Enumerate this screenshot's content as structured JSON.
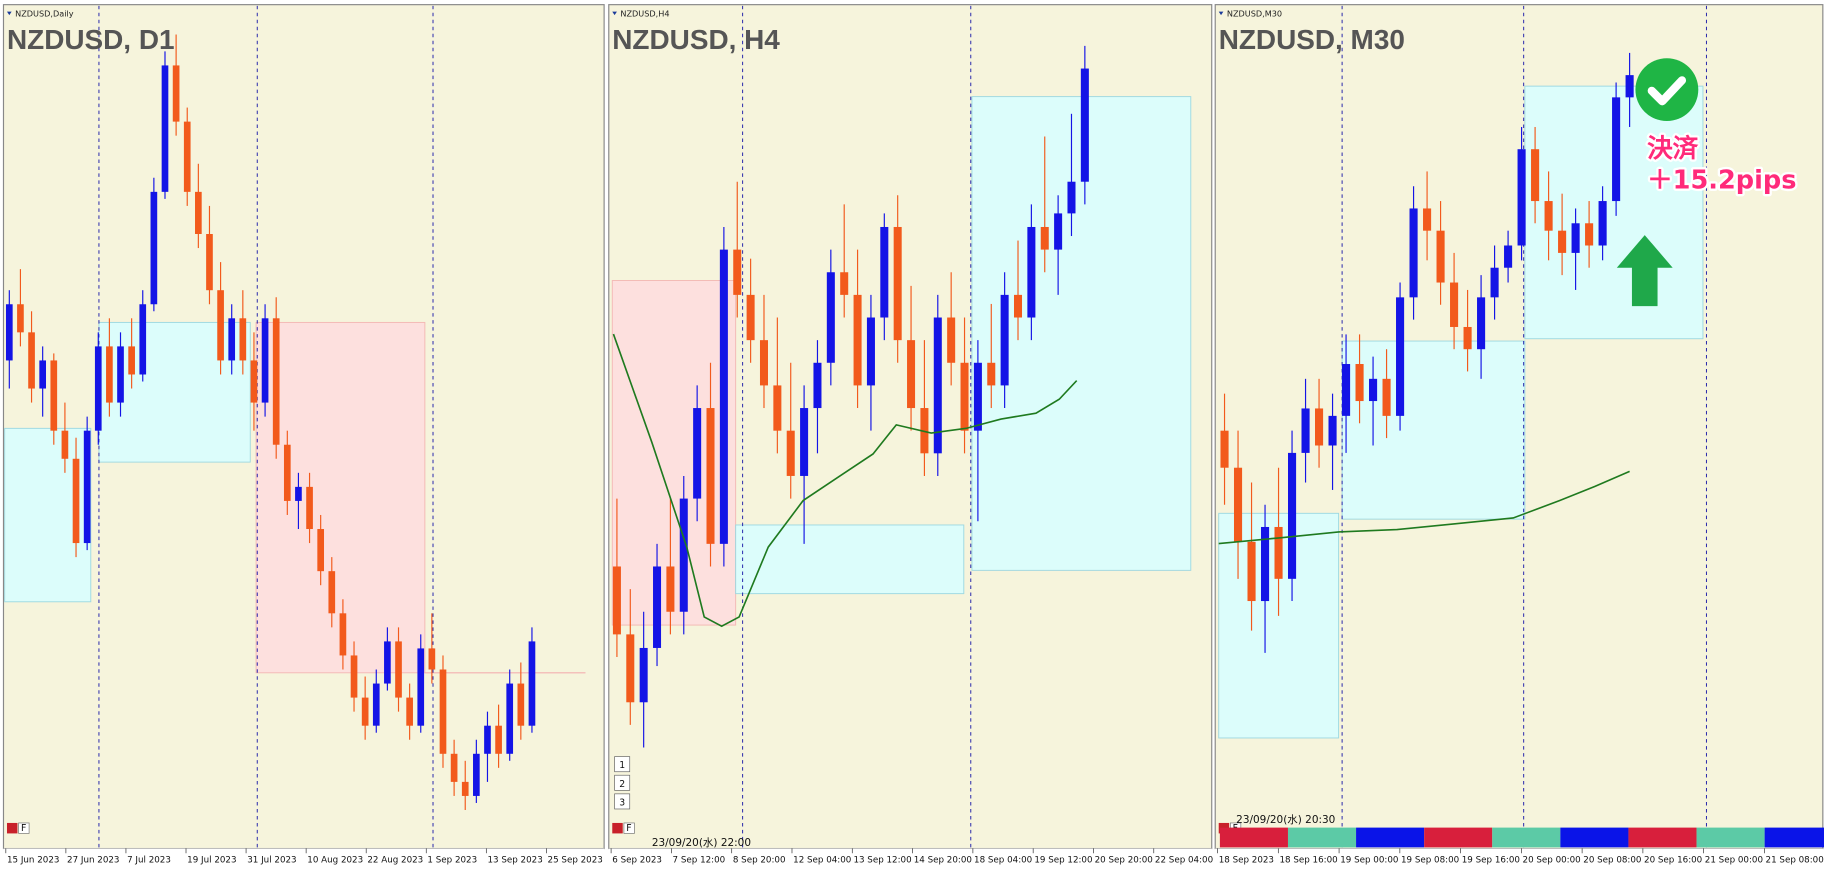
{
  "panels": [
    {
      "header": "NZDUSD,Daily",
      "title": "NZDUSD, D1",
      "ylim": [
        0.584,
        0.642
      ],
      "x_labels": [
        "15 Jun 2023",
        "27 Jun 2023",
        "7 Jul 2023",
        "19 Jul 2023",
        "31 Jul 2023",
        "10 Aug 2023",
        "22 Aug 2023",
        "1 Sep 2023",
        "13 Sep 2023",
        "25 Sep 2023"
      ],
      "candles": [
        [
          0.618,
          0.623,
          0.616,
          0.622
        ],
        [
          0.622,
          0.6245,
          0.619,
          0.62
        ],
        [
          0.62,
          0.6215,
          0.615,
          0.616
        ],
        [
          0.616,
          0.619,
          0.614,
          0.618
        ],
        [
          0.618,
          0.6185,
          0.612,
          0.613
        ],
        [
          0.613,
          0.615,
          0.61,
          0.611
        ],
        [
          0.611,
          0.6125,
          0.604,
          0.605
        ],
        [
          0.605,
          0.614,
          0.6045,
          0.613
        ],
        [
          0.613,
          0.62,
          0.612,
          0.619
        ],
        [
          0.619,
          0.621,
          0.614,
          0.615
        ],
        [
          0.615,
          0.62,
          0.614,
          0.619
        ],
        [
          0.619,
          0.621,
          0.616,
          0.617
        ],
        [
          0.617,
          0.623,
          0.6165,
          0.622
        ],
        [
          0.622,
          0.631,
          0.6215,
          0.63
        ],
        [
          0.63,
          0.64,
          0.6295,
          0.639
        ],
        [
          0.639,
          0.6412,
          0.634,
          0.635
        ],
        [
          0.635,
          0.636,
          0.629,
          0.63
        ],
        [
          0.63,
          0.632,
          0.626,
          0.627
        ],
        [
          0.627,
          0.629,
          0.622,
          0.623
        ],
        [
          0.623,
          0.625,
          0.617,
          0.618
        ],
        [
          0.618,
          0.622,
          0.617,
          0.621
        ],
        [
          0.621,
          0.623,
          0.617,
          0.618
        ],
        [
          0.618,
          0.62,
          0.613,
          0.615
        ],
        [
          0.615,
          0.622,
          0.614,
          0.621
        ],
        [
          0.621,
          0.6225,
          0.611,
          0.612
        ],
        [
          0.612,
          0.613,
          0.607,
          0.608
        ],
        [
          0.608,
          0.61,
          0.606,
          0.609
        ],
        [
          0.609,
          0.61,
          0.605,
          0.606
        ],
        [
          0.606,
          0.607,
          0.602,
          0.603
        ],
        [
          0.603,
          0.604,
          0.599,
          0.6
        ],
        [
          0.6,
          0.601,
          0.596,
          0.597
        ],
        [
          0.597,
          0.598,
          0.593,
          0.594
        ],
        [
          0.594,
          0.5955,
          0.591,
          0.592
        ],
        [
          0.592,
          0.596,
          0.5915,
          0.595
        ],
        [
          0.595,
          0.599,
          0.5945,
          0.598
        ],
        [
          0.598,
          0.599,
          0.593,
          0.594
        ],
        [
          0.594,
          0.595,
          0.591,
          0.592
        ],
        [
          0.592,
          0.5985,
          0.5915,
          0.5975
        ],
        [
          0.5975,
          0.6,
          0.595,
          0.596
        ],
        [
          0.596,
          0.597,
          0.589,
          0.59
        ],
        [
          0.59,
          0.591,
          0.587,
          0.588
        ],
        [
          0.588,
          0.5895,
          0.586,
          0.587
        ],
        [
          0.587,
          0.591,
          0.5865,
          0.59
        ],
        [
          0.59,
          0.593,
          0.588,
          0.592
        ],
        [
          0.592,
          0.5935,
          0.589,
          0.59
        ],
        [
          0.59,
          0.596,
          0.5895,
          0.595
        ],
        [
          0.595,
          0.5965,
          0.591,
          0.592
        ],
        [
          0.592,
          0.599,
          0.5915,
          0.598
        ]
      ]
    },
    {
      "header": "NZDUSD,H4",
      "title": "NZDUSD, H4",
      "ylim": [
        0.583,
        0.601
      ],
      "x_labels": [
        "6 Sep 2023",
        "7 Sep 12:00",
        "8 Sep 20:00",
        "12 Sep 04:00",
        "13 Sep 12:00",
        "14 Sep 20:00",
        "18 Sep 04:00",
        "19 Sep 12:00",
        "20 Sep 20:00",
        "22 Sep 04:00"
      ],
      "candles": [
        [
          0.589,
          0.5905,
          0.587,
          0.5875
        ],
        [
          0.5875,
          0.5885,
          0.5855,
          0.586
        ],
        [
          0.586,
          0.588,
          0.585,
          0.5872
        ],
        [
          0.5872,
          0.5895,
          0.5868,
          0.589
        ],
        [
          0.589,
          0.5905,
          0.5875,
          0.588
        ],
        [
          0.588,
          0.591,
          0.5875,
          0.5905
        ],
        [
          0.5905,
          0.593,
          0.59,
          0.5925
        ],
        [
          0.5925,
          0.5935,
          0.589,
          0.5895
        ],
        [
          0.5895,
          0.5965,
          0.589,
          0.596
        ],
        [
          0.596,
          0.5975,
          0.5945,
          0.595
        ],
        [
          0.595,
          0.5958,
          0.5935,
          0.594
        ],
        [
          0.594,
          0.595,
          0.5925,
          0.593
        ],
        [
          0.593,
          0.5945,
          0.5915,
          0.592
        ],
        [
          0.592,
          0.5935,
          0.5905,
          0.591
        ],
        [
          0.591,
          0.593,
          0.5895,
          0.5925
        ],
        [
          0.5925,
          0.594,
          0.5915,
          0.5935
        ],
        [
          0.5935,
          0.596,
          0.593,
          0.5955
        ],
        [
          0.5955,
          0.597,
          0.5945,
          0.595
        ],
        [
          0.595,
          0.596,
          0.5925,
          0.593
        ],
        [
          0.593,
          0.595,
          0.592,
          0.5945
        ],
        [
          0.5945,
          0.5968,
          0.594,
          0.5965
        ],
        [
          0.5965,
          0.5972,
          0.5935,
          0.594
        ],
        [
          0.594,
          0.5952,
          0.592,
          0.5925
        ],
        [
          0.5925,
          0.594,
          0.591,
          0.5915
        ],
        [
          0.5915,
          0.595,
          0.591,
          0.5945
        ],
        [
          0.5945,
          0.5955,
          0.593,
          0.5935
        ],
        [
          0.5935,
          0.5945,
          0.5915,
          0.592
        ],
        [
          0.592,
          0.594,
          0.59,
          0.5935
        ],
        [
          0.5935,
          0.5948,
          0.5925,
          0.593
        ],
        [
          0.593,
          0.5955,
          0.5925,
          0.595
        ],
        [
          0.595,
          0.5962,
          0.594,
          0.5945
        ],
        [
          0.5945,
          0.597,
          0.594,
          0.5965
        ],
        [
          0.5965,
          0.5985,
          0.5955,
          0.596
        ],
        [
          0.596,
          0.5972,
          0.595,
          0.5968
        ],
        [
          0.5968,
          0.599,
          0.5963,
          0.5975
        ],
        [
          0.5975,
          0.6005,
          0.597,
          0.6
        ]
      ]
    },
    {
      "header": "NZDUSD,M30",
      "title": "NZDUSD, M30",
      "ylim": [
        0.59,
        0.601
      ],
      "x_labels": [
        "18 Sep 2023",
        "18 Sep 16:00",
        "19 Sep 00:00",
        "19 Sep 08:00",
        "19 Sep 16:00",
        "20 Sep 00:00",
        "20 Sep 08:00",
        "20 Sep 16:00",
        "21 Sep 00:00",
        "21 Sep 08:00"
      ],
      "candles": [
        [
          0.5955,
          0.596,
          0.5945,
          0.595
        ],
        [
          0.595,
          0.5955,
          0.5935,
          0.594
        ],
        [
          0.594,
          0.5948,
          0.5928,
          0.5932
        ],
        [
          0.5932,
          0.5945,
          0.5925,
          0.5942
        ],
        [
          0.5942,
          0.595,
          0.593,
          0.5935
        ],
        [
          0.5935,
          0.5955,
          0.5932,
          0.5952
        ],
        [
          0.5952,
          0.5962,
          0.5948,
          0.5958
        ],
        [
          0.5958,
          0.5962,
          0.595,
          0.5953
        ],
        [
          0.5953,
          0.596,
          0.5947,
          0.5957
        ],
        [
          0.5957,
          0.5968,
          0.5952,
          0.5964
        ],
        [
          0.5964,
          0.5968,
          0.5956,
          0.5959
        ],
        [
          0.5959,
          0.5965,
          0.5953,
          0.5962
        ],
        [
          0.5962,
          0.5966,
          0.5954,
          0.5957
        ],
        [
          0.5957,
          0.5975,
          0.5955,
          0.5973
        ],
        [
          0.5973,
          0.5988,
          0.597,
          0.5985
        ],
        [
          0.5985,
          0.599,
          0.5978,
          0.5982
        ],
        [
          0.5982,
          0.5986,
          0.5972,
          0.5975
        ],
        [
          0.5975,
          0.5979,
          0.5966,
          0.5969
        ],
        [
          0.5969,
          0.5974,
          0.5963,
          0.5966
        ],
        [
          0.5966,
          0.5976,
          0.5962,
          0.5973
        ],
        [
          0.5973,
          0.598,
          0.597,
          0.5977
        ],
        [
          0.5977,
          0.5982,
          0.5975,
          0.598
        ],
        [
          0.598,
          0.5996,
          0.5978,
          0.5993
        ],
        [
          0.5993,
          0.5996,
          0.5983,
          0.5986
        ],
        [
          0.5986,
          0.599,
          0.5978,
          0.5982
        ],
        [
          0.5982,
          0.5987,
          0.5976,
          0.5979
        ],
        [
          0.5979,
          0.5985,
          0.5974,
          0.5983
        ],
        [
          0.5983,
          0.5986,
          0.5977,
          0.598
        ],
        [
          0.598,
          0.5988,
          0.5978,
          0.5986
        ],
        [
          0.5986,
          0.6002,
          0.5984,
          0.6
        ],
        [
          0.6,
          0.6006,
          0.5996,
          0.6003
        ]
      ]
    }
  ],
  "timestamps": [
    "23/09/20(水) 22:00",
    "23/09/20(水) 20:30"
  ],
  "buttons": [
    "1",
    "2",
    "3"
  ],
  "button_f": "F",
  "annotation": [
    "決済",
    "＋15.2pips"
  ]
}
